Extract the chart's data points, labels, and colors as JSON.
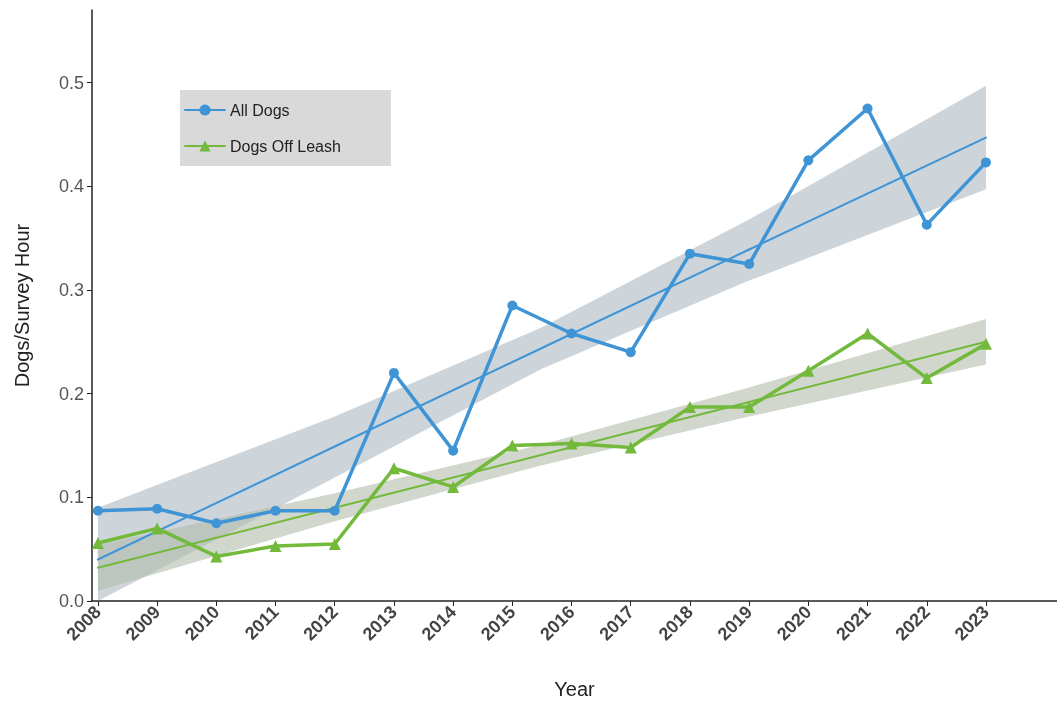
{
  "chart_data": {
    "type": "line",
    "xlabel": "Year",
    "ylabel": "Dogs/Survey Hour",
    "x": [
      2008,
      2009,
      2010,
      2011,
      2012,
      2013,
      2014,
      2015,
      2016,
      2017,
      2018,
      2019,
      2020,
      2021,
      2022,
      2023
    ],
    "xlim": [
      2007.9,
      2024.2
    ],
    "xticks": [
      2008,
      2009,
      2010,
      2011,
      2012,
      2013,
      2014,
      2015,
      2016,
      2017,
      2018,
      2019,
      2020,
      2021,
      2022,
      2023
    ],
    "ylim": [
      0,
      0.57
    ],
    "yticks": [
      {
        "value": 0,
        "label": "0.0"
      },
      0.1,
      0.2,
      0.3,
      0.4,
      0.5
    ],
    "grid": false,
    "legend": "top left",
    "line_style": "solid",
    "series": [
      {
        "name": "All Dogs",
        "color": "#3f94d6",
        "marker": "circle",
        "values": [
          0.087,
          0.089,
          0.075,
          0.087,
          0.087,
          0.22,
          0.145,
          0.285,
          0.258,
          0.24,
          0.335,
          0.325,
          0.425,
          0.475,
          0.363,
          0.423
        ]
      },
      {
        "name": "Dogs Off Leash",
        "color": "#72b93c",
        "marker": "triangle",
        "values": [
          0.056,
          0.07,
          0.043,
          0.053,
          0.055,
          0.128,
          0.11,
          0.15,
          0.152,
          0.148,
          0.187,
          0.187,
          0.222,
          0.258,
          0.215,
          0.248
        ]
      },
      {
        "color": "#3f94d6",
        "marker": "none",
        "x": [
          2008,
          2012,
          2015.5,
          2019,
          2023
        ],
        "values": [
          0.04,
          0.149,
          0.244,
          0.339,
          0.447
        ],
        "lower": [
          0,
          0.119,
          0.224,
          0.309,
          0.397
        ],
        "upper": [
          0.09,
          0.178,
          0.264,
          0.368,
          0.497
        ]
      },
      {
        "color": "#72b93c",
        "marker": "none",
        "x": [
          2008,
          2012,
          2015.5,
          2019,
          2023
        ],
        "values": [
          0.032,
          0.09,
          0.141,
          0.192,
          0.25
        ],
        "lower": [
          0.01,
          0.077,
          0.131,
          0.178,
          0.228
        ],
        "upper": [
          0.054,
          0.104,
          0.151,
          0.206,
          0.272
        ]
      }
    ]
  }
}
